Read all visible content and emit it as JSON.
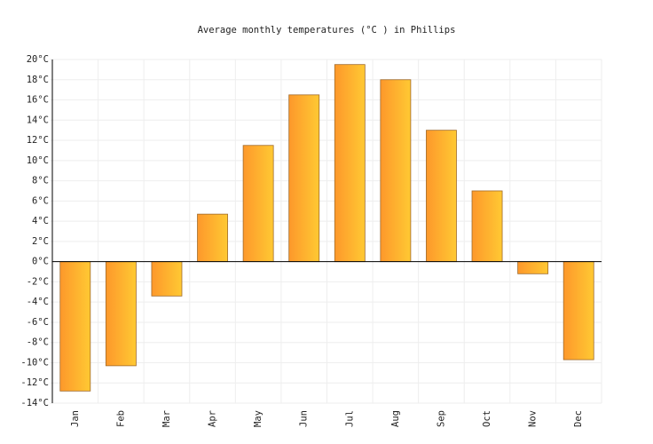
{
  "chart_data": {
    "type": "bar",
    "title": "Average monthly temperatures (°C ) in Phillips",
    "categories": [
      "Jan",
      "Feb",
      "Mar",
      "Apr",
      "May",
      "Jun",
      "Jul",
      "Aug",
      "Sep",
      "Oct",
      "Nov",
      "Dec"
    ],
    "values": [
      -12.8,
      -10.3,
      -3.4,
      4.7,
      11.5,
      16.5,
      19.5,
      18,
      13,
      7,
      -1.2,
      -9.7
    ],
    "colors": [
      "#fd982b",
      "#ffc933"
    ],
    "ylim": [
      -14,
      20
    ],
    "yticks": [
      {
        "value": -14,
        "label": "-14°C"
      },
      {
        "value": -12,
        "label": "-12°C"
      },
      {
        "value": -10,
        "label": "-10°C"
      },
      {
        "value": -8,
        "label": "-8°C"
      },
      {
        "value": -6,
        "label": "-6°C"
      },
      {
        "value": -4,
        "label": "-4°C"
      },
      {
        "value": -2,
        "label": "-2°C"
      },
      {
        "value": 0,
        "label": "0°C"
      },
      {
        "value": 2,
        "label": "2°C"
      },
      {
        "value": 4,
        "label": "4°C"
      },
      {
        "value": 6,
        "label": "6°C"
      },
      {
        "value": 8,
        "label": "8°C"
      },
      {
        "value": 10,
        "label": "10°C"
      },
      {
        "value": 12,
        "label": "12°C"
      },
      {
        "value": 14,
        "label": "14°C"
      },
      {
        "value": 16,
        "label": "16°C"
      },
      {
        "value": 18,
        "label": "18°C"
      },
      {
        "value": 20,
        "label": "20°C"
      }
    ],
    "grid": true
  }
}
